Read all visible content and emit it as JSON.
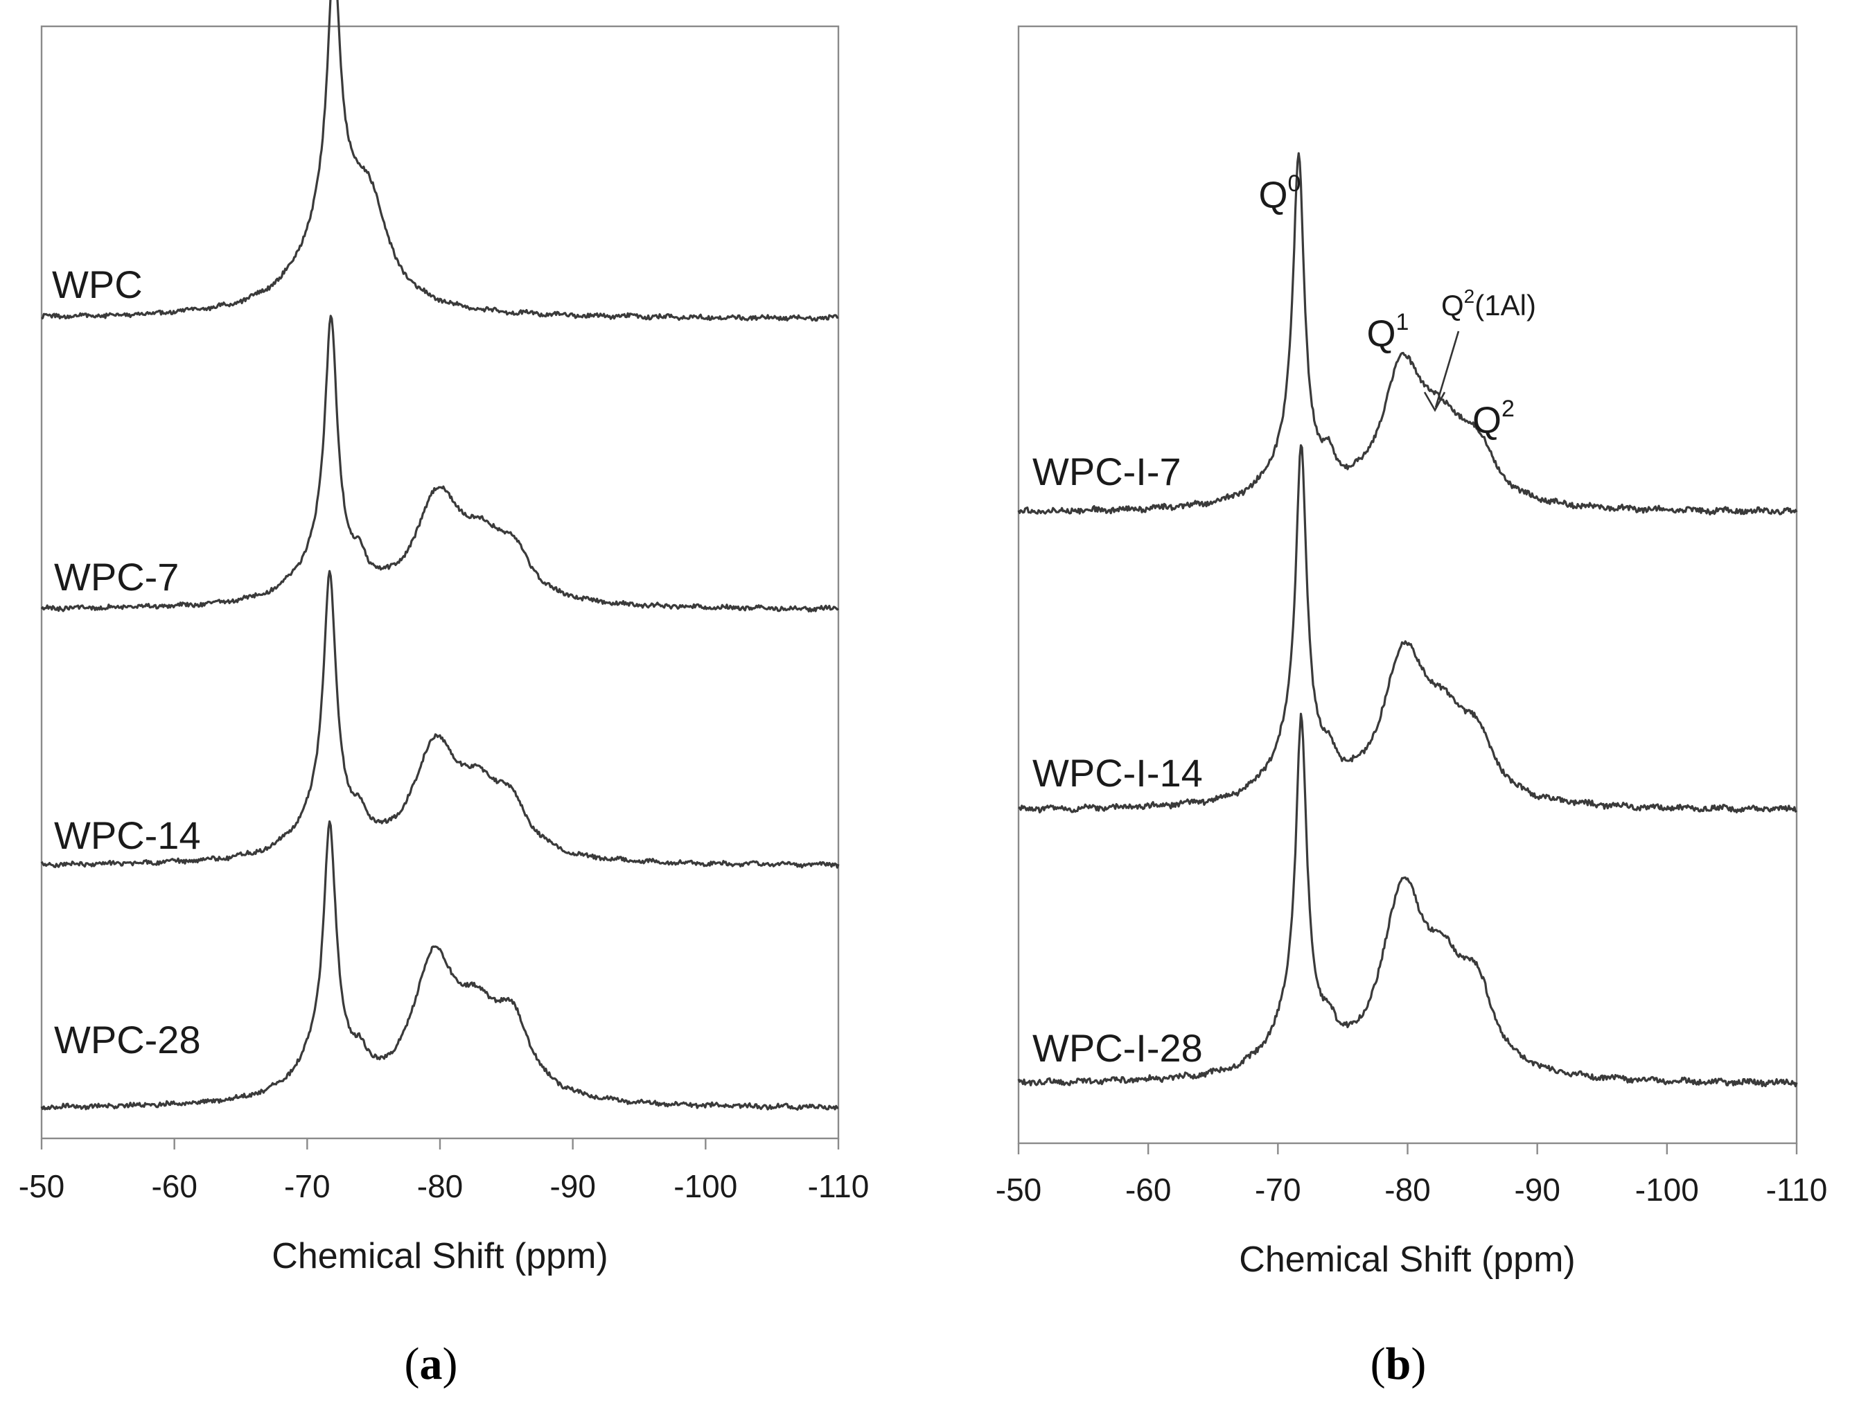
{
  "chart_data": [
    {
      "type": "line",
      "panel": "a",
      "panel_label": "a",
      "xlabel": "Chemical Shift (ppm)",
      "ylabel": "",
      "xlim": [
        -50,
        -110
      ],
      "xticks": [
        "-50",
        "-60",
        "-70",
        "-80",
        "-90",
        "-100",
        "-110"
      ],
      "series": [
        {
          "name": "WPC",
          "peaks": [
            {
              "x": -72.0,
              "h": 1.0,
              "w": 0.55
            },
            {
              "x": -72.3,
              "h": 0.5,
              "w": 2.8
            },
            {
              "x": -74.8,
              "h": 0.28,
              "w": 1.4
            }
          ]
        },
        {
          "name": "WPC-7",
          "peaks": [
            {
              "x": -71.8,
              "h": 1.0,
              "w": 0.55
            },
            {
              "x": -71.4,
              "h": 0.22,
              "w": 2.4
            },
            {
              "x": -74.0,
              "h": 0.08,
              "w": 0.5
            },
            {
              "x": -79.8,
              "h": 0.42,
              "w": 1.9
            },
            {
              "x": -83.0,
              "h": 0.22,
              "w": 2.2
            },
            {
              "x": -85.5,
              "h": 0.17,
              "w": 1.6
            }
          ]
        },
        {
          "name": "WPC-14",
          "peaks": [
            {
              "x": -71.7,
              "h": 1.0,
              "w": 0.55
            },
            {
              "x": -71.4,
              "h": 0.22,
              "w": 2.4
            },
            {
              "x": -74.0,
              "h": 0.08,
              "w": 0.5
            },
            {
              "x": -79.6,
              "h": 0.44,
              "w": 1.9
            },
            {
              "x": -82.8,
              "h": 0.24,
              "w": 2.2
            },
            {
              "x": -85.3,
              "h": 0.18,
              "w": 1.6
            }
          ]
        },
        {
          "name": "WPC-28",
          "peaks": [
            {
              "x": -71.7,
              "h": 0.95,
              "w": 0.55
            },
            {
              "x": -71.4,
              "h": 0.22,
              "w": 2.4
            },
            {
              "x": -74.0,
              "h": 0.08,
              "w": 0.5
            },
            {
              "x": -79.5,
              "h": 0.55,
              "w": 1.9
            },
            {
              "x": -82.8,
              "h": 0.3,
              "w": 2.2
            },
            {
              "x": -85.5,
              "h": 0.27,
              "w": 1.6
            }
          ]
        }
      ]
    },
    {
      "type": "line",
      "panel": "b",
      "panel_label": "b",
      "xlabel": "Chemical Shift (ppm)",
      "ylabel": "",
      "xlim": [
        -50,
        -110
      ],
      "xticks": [
        "-50",
        "-60",
        "-70",
        "-80",
        "-90",
        "-100",
        "-110"
      ],
      "series": [
        {
          "name": "WPC-I-7",
          "peaks": [
            {
              "x": -71.6,
              "h": 1.0,
              "w": 0.5
            },
            {
              "x": -71.2,
              "h": 0.18,
              "w": 2.2
            },
            {
              "x": -74.0,
              "h": 0.07,
              "w": 0.5
            },
            {
              "x": -79.6,
              "h": 0.44,
              "w": 1.9
            },
            {
              "x": -82.6,
              "h": 0.21,
              "w": 2.0
            },
            {
              "x": -85.3,
              "h": 0.17,
              "w": 1.6
            }
          ]
        },
        {
          "name": "WPC-I-14",
          "peaks": [
            {
              "x": -71.8,
              "h": 1.0,
              "w": 0.5
            },
            {
              "x": -71.4,
              "h": 0.2,
              "w": 2.2
            },
            {
              "x": -74.0,
              "h": 0.07,
              "w": 0.5
            },
            {
              "x": -79.7,
              "h": 0.47,
              "w": 1.9
            },
            {
              "x": -82.7,
              "h": 0.22,
              "w": 2.0
            },
            {
              "x": -85.3,
              "h": 0.18,
              "w": 1.6
            }
          ]
        },
        {
          "name": "WPC-I-28",
          "peaks": [
            {
              "x": -71.8,
              "h": 1.0,
              "w": 0.5
            },
            {
              "x": -71.4,
              "h": 0.2,
              "w": 2.2
            },
            {
              "x": -74.0,
              "h": 0.07,
              "w": 0.5
            },
            {
              "x": -79.6,
              "h": 0.58,
              "w": 1.9
            },
            {
              "x": -82.7,
              "h": 0.27,
              "w": 2.0
            },
            {
              "x": -85.3,
              "h": 0.24,
              "w": 1.6
            }
          ]
        }
      ],
      "annotations": [
        {
          "text": "Q",
          "sup": "0"
        },
        {
          "text": "Q",
          "sup": "1"
        },
        {
          "text": "Q",
          "sup": "2",
          "suffix": "(1Al)"
        },
        {
          "text": "Q",
          "sup": "2"
        }
      ]
    }
  ]
}
